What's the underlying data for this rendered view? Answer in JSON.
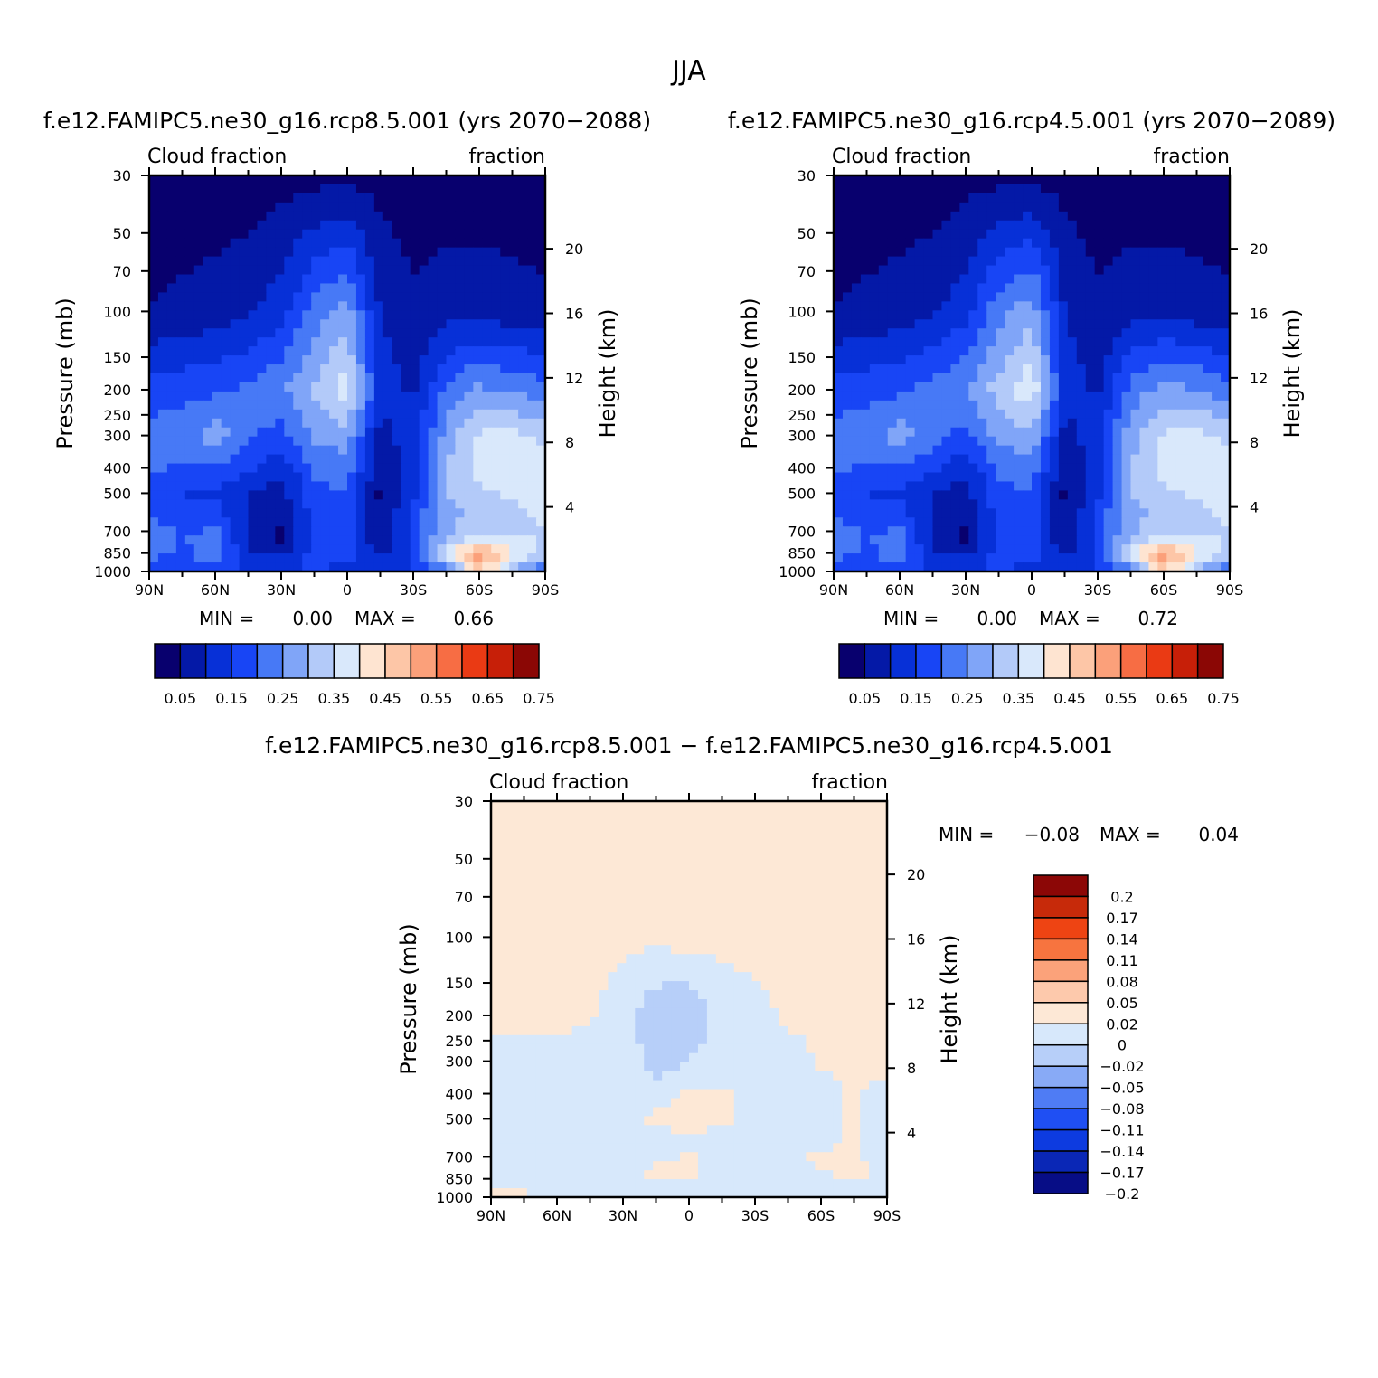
{
  "title": "JJA",
  "colors": {
    "abs": [
      "#08006e",
      "#0419a7",
      "#0730d7",
      "#1845f5",
      "#4779f6",
      "#80a5f8",
      "#b3caf9",
      "#d9e8fb",
      "#fee4d1",
      "#fdc6a7",
      "#fba07a",
      "#f76d44",
      "#ea3a14",
      "#c71f08",
      "#8b0705"
    ],
    "diff": [
      "#070d86",
      "#0a27b6",
      "#0d3be0",
      "#1f4ff3",
      "#4f7cf4",
      "#88aaf6",
      "#b7cff9",
      "#d7e8fb",
      "#fde8d6",
      "#fdc9ac",
      "#fba27a",
      "#f7743f",
      "#ee4413",
      "#c72a0a",
      "#8c0706"
    ]
  },
  "panels": [
    {
      "title": "f.e12.FAMIPC5.ne30_g16.rcp8.5.001 (yrs 2070−2088)",
      "left_label": "Cloud fraction",
      "right_label": "fraction",
      "ylabel": "Pressure (mb)",
      "y2label": "Height (km)",
      "stats": {
        "min_label": "MIN =",
        "min": "0.00",
        "max_label": "MAX =",
        "max": "0.66"
      }
    },
    {
      "title": "f.e12.FAMIPC5.ne30_g16.rcp4.5.001 (yrs 2070−2089)",
      "left_label": "Cloud fraction",
      "right_label": "fraction",
      "ylabel": "Pressure (mb)",
      "y2label": "Height (km)",
      "stats": {
        "min_label": "MIN =",
        "min": "0.00",
        "max_label": "MAX =",
        "max": "0.72"
      }
    },
    {
      "title": "f.e12.FAMIPC5.ne30_g16.rcp8.5.001 − f.e12.FAMIPC5.ne30_g16.rcp4.5.001",
      "left_label": "Cloud fraction",
      "right_label": "fraction",
      "ylabel": "Pressure (mb)",
      "y2label": "Height (km)",
      "stats": {
        "min_label": "MIN =",
        "min": "−0.08",
        "max_label": "MAX =",
        "max": "0.04"
      }
    }
  ],
  "colorbar_abs_labels": [
    "0.05",
    "0.15",
    "0.25",
    "0.35",
    "0.45",
    "0.55",
    "0.65",
    "0.75"
  ],
  "colorbar_diff_labels": [
    "0.2",
    "0.17",
    "0.14",
    "0.11",
    "0.08",
    "0.05",
    "0.02",
    "0",
    "−0.02",
    "−0.05",
    "−0.08",
    "−0.11",
    "−0.14",
    "−0.17",
    "−0.2"
  ],
  "chart_data": [
    {
      "type": "heatmap",
      "title": "f.e12.FAMIPC5.ne30_g16.rcp8.5.001 (yrs 2070−2088)",
      "xlabel": "",
      "ylabel": "Pressure (mb)",
      "y2label": "Height (km)",
      "x_ticks": [
        "90N",
        "60N",
        "30N",
        "0",
        "30S",
        "60S",
        "90S"
      ],
      "y_ticks": [
        30,
        50,
        70,
        100,
        150,
        200,
        250,
        300,
        400,
        500,
        700,
        850,
        1000
      ],
      "y2_ticks": [
        20,
        16,
        12,
        8,
        4
      ],
      "levels": [
        0.05,
        0.1,
        0.15,
        0.2,
        0.25,
        0.3,
        0.35,
        0.4,
        0.45,
        0.5,
        0.55,
        0.6,
        0.65,
        0.7
      ],
      "min": 0.0,
      "max": 0.66,
      "x_lat": [
        90,
        75,
        60,
        45,
        30,
        15,
        0,
        -15,
        -30,
        -45,
        -60,
        -75,
        -90
      ],
      "p_levels": [
        30,
        100,
        200,
        300,
        400,
        500,
        600,
        700,
        775,
        850,
        925,
        1000
      ],
      "values": [
        [
          0.02,
          0.02,
          0.02,
          0.02,
          0.03,
          0.03,
          0.03,
          0.03,
          0.02,
          0.02,
          0.02,
          0.02,
          0.02
        ],
        [
          0.05,
          0.06,
          0.07,
          0.09,
          0.13,
          0.22,
          0.27,
          0.1,
          0.06,
          0.08,
          0.08,
          0.07,
          0.06
        ],
        [
          0.17,
          0.18,
          0.19,
          0.21,
          0.24,
          0.31,
          0.38,
          0.13,
          0.09,
          0.21,
          0.26,
          0.24,
          0.22
        ],
        [
          0.22,
          0.23,
          0.28,
          0.21,
          0.18,
          0.26,
          0.28,
          0.08,
          0.13,
          0.27,
          0.36,
          0.37,
          0.33
        ],
        [
          0.21,
          0.19,
          0.2,
          0.16,
          0.11,
          0.21,
          0.23,
          0.05,
          0.13,
          0.3,
          0.37,
          0.39,
          0.37
        ],
        [
          0.18,
          0.15,
          0.14,
          0.1,
          0.08,
          0.18,
          0.2,
          0.04,
          0.13,
          0.3,
          0.34,
          0.36,
          0.37
        ],
        [
          0.19,
          0.17,
          0.17,
          0.09,
          0.06,
          0.17,
          0.18,
          0.05,
          0.16,
          0.29,
          0.31,
          0.33,
          0.37
        ],
        [
          0.23,
          0.19,
          0.21,
          0.09,
          0.04,
          0.16,
          0.17,
          0.05,
          0.17,
          0.29,
          0.33,
          0.35,
          0.34
        ],
        [
          0.24,
          0.2,
          0.22,
          0.09,
          0.05,
          0.16,
          0.18,
          0.06,
          0.16,
          0.33,
          0.39,
          0.38,
          0.34
        ],
        [
          0.23,
          0.18,
          0.25,
          0.09,
          0.06,
          0.15,
          0.18,
          0.08,
          0.16,
          0.38,
          0.55,
          0.41,
          0.32
        ],
        [
          0.19,
          0.16,
          0.22,
          0.15,
          0.14,
          0.18,
          0.15,
          0.12,
          0.16,
          0.3,
          0.5,
          0.35,
          0.26
        ],
        [
          0.22,
          0.18,
          0.15,
          0.13,
          0.12,
          0.14,
          0.12,
          0.1,
          0.13,
          0.2,
          0.45,
          0.3,
          0.2
        ]
      ]
    },
    {
      "type": "heatmap",
      "title": "f.e12.FAMIPC5.ne30_g16.rcp4.5.001 (yrs 2070−2089)",
      "xlabel": "",
      "ylabel": "Pressure (mb)",
      "y2label": "Height (km)",
      "x_ticks": [
        "90N",
        "60N",
        "30N",
        "0",
        "30S",
        "60S",
        "90S"
      ],
      "y_ticks": [
        30,
        50,
        70,
        100,
        150,
        200,
        250,
        300,
        400,
        500,
        700,
        850,
        1000
      ],
      "y2_ticks": [
        20,
        16,
        12,
        8,
        4
      ],
      "levels": [
        0.05,
        0.1,
        0.15,
        0.2,
        0.25,
        0.3,
        0.35,
        0.4,
        0.45,
        0.5,
        0.55,
        0.6,
        0.65,
        0.7
      ],
      "min": 0.0,
      "max": 0.72,
      "x_lat": [
        90,
        75,
        60,
        45,
        30,
        15,
        0,
        -15,
        -30,
        -45,
        -60,
        -75,
        -90
      ],
      "p_levels": [
        30,
        100,
        200,
        300,
        400,
        500,
        600,
        700,
        775,
        850,
        925,
        1000
      ],
      "values": [
        [
          0.02,
          0.02,
          0.02,
          0.02,
          0.03,
          0.03,
          0.03,
          0.03,
          0.02,
          0.02,
          0.02,
          0.02,
          0.02
        ],
        [
          0.05,
          0.06,
          0.07,
          0.09,
          0.13,
          0.23,
          0.28,
          0.1,
          0.06,
          0.08,
          0.08,
          0.07,
          0.06
        ],
        [
          0.17,
          0.18,
          0.19,
          0.22,
          0.25,
          0.32,
          0.39,
          0.13,
          0.09,
          0.22,
          0.27,
          0.25,
          0.22
        ],
        [
          0.22,
          0.23,
          0.28,
          0.22,
          0.18,
          0.27,
          0.29,
          0.08,
          0.13,
          0.28,
          0.36,
          0.37,
          0.33
        ],
        [
          0.21,
          0.19,
          0.2,
          0.16,
          0.11,
          0.21,
          0.23,
          0.05,
          0.13,
          0.3,
          0.37,
          0.39,
          0.37
        ],
        [
          0.18,
          0.15,
          0.14,
          0.1,
          0.08,
          0.18,
          0.2,
          0.04,
          0.13,
          0.3,
          0.34,
          0.36,
          0.37
        ],
        [
          0.19,
          0.17,
          0.17,
          0.09,
          0.06,
          0.17,
          0.18,
          0.05,
          0.16,
          0.29,
          0.31,
          0.33,
          0.37
        ],
        [
          0.23,
          0.19,
          0.21,
          0.09,
          0.04,
          0.16,
          0.17,
          0.05,
          0.17,
          0.29,
          0.33,
          0.35,
          0.34
        ],
        [
          0.24,
          0.2,
          0.22,
          0.09,
          0.05,
          0.16,
          0.18,
          0.06,
          0.16,
          0.33,
          0.39,
          0.38,
          0.34
        ],
        [
          0.23,
          0.18,
          0.25,
          0.09,
          0.06,
          0.15,
          0.18,
          0.08,
          0.16,
          0.38,
          0.55,
          0.41,
          0.32
        ],
        [
          0.19,
          0.16,
          0.22,
          0.15,
          0.14,
          0.18,
          0.15,
          0.12,
          0.16,
          0.3,
          0.5,
          0.35,
          0.26
        ],
        [
          0.22,
          0.18,
          0.15,
          0.13,
          0.12,
          0.14,
          0.12,
          0.1,
          0.13,
          0.2,
          0.45,
          0.3,
          0.2
        ]
      ]
    },
    {
      "type": "heatmap",
      "title": "f.e12.FAMIPC5.ne30_g16.rcp8.5.001 − f.e12.FAMIPC5.ne30_g16.rcp4.5.001",
      "xlabel": "",
      "ylabel": "Pressure (mb)",
      "y2label": "Height (km)",
      "x_ticks": [
        "90N",
        "60N",
        "30N",
        "0",
        "30S",
        "60S",
        "90S"
      ],
      "y_ticks": [
        30,
        50,
        70,
        100,
        150,
        200,
        250,
        300,
        400,
        500,
        700,
        850,
        1000
      ],
      "y2_ticks": [
        20,
        16,
        12,
        8,
        4
      ],
      "levels": [
        -0.2,
        -0.17,
        -0.14,
        -0.11,
        -0.08,
        -0.05,
        -0.02,
        0,
        0.02,
        0.05,
        0.08,
        0.11,
        0.14,
        0.17,
        0.2
      ],
      "min": -0.08,
      "max": 0.04,
      "x_lat": [
        90,
        75,
        60,
        45,
        30,
        15,
        0,
        -15,
        -30,
        -45,
        -60,
        -75,
        -90
      ],
      "p_levels": [
        30,
        100,
        200,
        300,
        400,
        500,
        600,
        700,
        775,
        850,
        925,
        1000
      ],
      "values": [
        [
          0.003,
          0.003,
          0.003,
          0.003,
          0.003,
          0.003,
          0.003,
          0.003,
          0.003,
          0.003,
          0.003,
          0.003,
          0.003
        ],
        [
          0.005,
          0.005,
          0.005,
          0.005,
          0.005,
          0.005,
          0.01,
          0.005,
          0.005,
          0.005,
          0.005,
          0.005,
          0.005
        ],
        [
          0.005,
          0.005,
          0.005,
          0.003,
          -0.01,
          -0.035,
          -0.04,
          -0.01,
          -0.005,
          0.003,
          0.005,
          0.005,
          0.005
        ],
        [
          -0.005,
          -0.008,
          -0.008,
          -0.008,
          -0.008,
          -0.03,
          -0.02,
          -0.008,
          -0.008,
          -0.008,
          0.003,
          0.005,
          0.008
        ],
        [
          -0.008,
          -0.015,
          -0.008,
          -0.008,
          -0.008,
          -0.01,
          0.005,
          0.003,
          -0.008,
          -0.008,
          -0.008,
          0.003,
          -0.008
        ],
        [
          -0.008,
          -0.01,
          -0.008,
          -0.008,
          -0.008,
          0.005,
          0.015,
          0.004,
          -0.008,
          -0.008,
          -0.008,
          0.003,
          -0.008
        ],
        [
          -0.008,
          -0.02,
          -0.008,
          -0.008,
          -0.008,
          -0.008,
          -0.008,
          -0.008,
          -0.008,
          -0.008,
          -0.008,
          0.003,
          -0.02
        ],
        [
          -0.008,
          -0.008,
          -0.008,
          -0.008,
          -0.008,
          -0.008,
          0.005,
          -0.008,
          -0.008,
          -0.008,
          0.004,
          0.003,
          -0.008
        ],
        [
          -0.008,
          -0.008,
          -0.008,
          -0.008,
          -0.008,
          0.004,
          0.005,
          -0.008,
          -0.008,
          -0.025,
          0.004,
          0.004,
          -0.008
        ],
        [
          -0.008,
          -0.008,
          -0.008,
          -0.025,
          -0.008,
          0.004,
          0.005,
          -0.008,
          -0.008,
          -0.008,
          -0.008,
          0.004,
          -0.008
        ],
        [
          0.003,
          -0.008,
          -0.008,
          -0.008,
          -0.008,
          -0.008,
          -0.008,
          -0.008,
          -0.008,
          -0.008,
          -0.008,
          -0.03,
          -0.008
        ],
        [
          0.008,
          0.008,
          0.008,
          0.008,
          0.008,
          0.005,
          0.005,
          0.008,
          0.008,
          0.008,
          0.008,
          -0.01,
          -0.008
        ]
      ]
    }
  ]
}
